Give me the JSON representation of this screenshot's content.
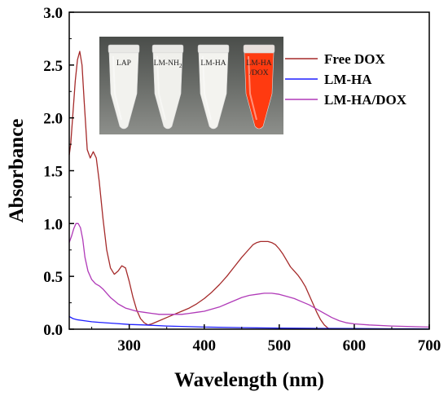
{
  "chart_data": {
    "type": "line",
    "xlabel": "Wavelength (nm)",
    "ylabel": "Absorbance",
    "xlim": [
      220,
      700
    ],
    "ylim": [
      0.0,
      3.0
    ],
    "xticks": [
      {
        "value": 300,
        "label": "300"
      },
      {
        "value": 400,
        "label": "400"
      },
      {
        "value": 500,
        "label": "500"
      },
      {
        "value": 600,
        "label": "600"
      },
      {
        "value": 700,
        "label": "700"
      }
    ],
    "yticks": [
      {
        "value": 0.0,
        "label": "0.0"
      },
      {
        "value": 0.5,
        "label": "0.5"
      },
      {
        "value": 1.0,
        "label": "1.0"
      },
      {
        "value": 1.5,
        "label": "1.5"
      },
      {
        "value": 2.0,
        "label": "2.0"
      },
      {
        "value": 2.5,
        "label": "2.5"
      },
      {
        "value": 3.0,
        "label": "3.0"
      }
    ],
    "grid": false,
    "legend_position": "top-right",
    "series": [
      {
        "name": "Free DOX",
        "color": "#a52a2a",
        "x": [
          220,
          222,
          225,
          228,
          231,
          234,
          237,
          240,
          244,
          248,
          252,
          256,
          260,
          265,
          270,
          275,
          280,
          285,
          290,
          295,
          300,
          305,
          310,
          315,
          320,
          325,
          330,
          340,
          350,
          360,
          370,
          380,
          390,
          400,
          410,
          420,
          430,
          440,
          450,
          460,
          465,
          470,
          475,
          480,
          485,
          490,
          495,
          500,
          505,
          510,
          515,
          520,
          525,
          530,
          535,
          540,
          545,
          550,
          555,
          560,
          565,
          570
        ],
        "y": [
          1.65,
          1.75,
          2.05,
          2.35,
          2.55,
          2.63,
          2.5,
          2.15,
          1.7,
          1.62,
          1.68,
          1.62,
          1.4,
          1.05,
          0.75,
          0.58,
          0.52,
          0.55,
          0.6,
          0.58,
          0.45,
          0.3,
          0.18,
          0.1,
          0.06,
          0.04,
          0.05,
          0.08,
          0.11,
          0.14,
          0.17,
          0.2,
          0.24,
          0.29,
          0.35,
          0.42,
          0.5,
          0.59,
          0.68,
          0.76,
          0.8,
          0.82,
          0.83,
          0.83,
          0.83,
          0.82,
          0.8,
          0.76,
          0.71,
          0.65,
          0.59,
          0.55,
          0.51,
          0.46,
          0.4,
          0.32,
          0.24,
          0.16,
          0.09,
          0.04,
          0.01,
          0.0
        ]
      },
      {
        "name": "LM-HA",
        "color": "#1f1fff",
        "x": [
          220,
          225,
          230,
          240,
          250,
          260,
          280,
          300,
          320,
          350,
          400,
          450,
          500,
          550,
          600,
          650,
          700
        ],
        "y": [
          0.12,
          0.1,
          0.09,
          0.08,
          0.07,
          0.065,
          0.055,
          0.045,
          0.04,
          0.03,
          0.02,
          0.015,
          0.01,
          0.008,
          0.006,
          0.004,
          0.003
        ]
      },
      {
        "name": "LM-HA/DOX",
        "color": "#b03ab8",
        "x": [
          220,
          223,
          226,
          229,
          232,
          235,
          238,
          241,
          245,
          250,
          255,
          260,
          265,
          270,
          275,
          280,
          285,
          290,
          295,
          300,
          305,
          310,
          320,
          330,
          340,
          350,
          360,
          370,
          380,
          390,
          400,
          410,
          420,
          430,
          440,
          450,
          460,
          470,
          480,
          490,
          500,
          510,
          520,
          530,
          540,
          550,
          560,
          570,
          580,
          590,
          600,
          620,
          650,
          700
        ],
        "y": [
          0.82,
          0.88,
          0.95,
          1.0,
          1.0,
          0.96,
          0.85,
          0.68,
          0.55,
          0.47,
          0.43,
          0.41,
          0.38,
          0.34,
          0.3,
          0.27,
          0.24,
          0.22,
          0.2,
          0.19,
          0.18,
          0.17,
          0.16,
          0.15,
          0.14,
          0.14,
          0.14,
          0.14,
          0.15,
          0.16,
          0.17,
          0.19,
          0.21,
          0.24,
          0.27,
          0.3,
          0.32,
          0.33,
          0.34,
          0.34,
          0.33,
          0.31,
          0.29,
          0.26,
          0.23,
          0.19,
          0.15,
          0.11,
          0.08,
          0.06,
          0.05,
          0.04,
          0.03,
          0.02
        ]
      }
    ]
  },
  "inset_photo": {
    "vials": [
      {
        "label": "LAP",
        "sub": "",
        "label2": "",
        "liquid": "#f2f2ee"
      },
      {
        "label": "LM-NH",
        "sub": "2",
        "label2": "",
        "liquid": "#f0f0ec"
      },
      {
        "label": "LM-HA",
        "sub": "",
        "label2": "",
        "liquid": "#f3f3ef"
      },
      {
        "label": "LM-HA",
        "sub": "",
        "label2": "/DOX",
        "liquid": "#ff3a10"
      }
    ]
  }
}
